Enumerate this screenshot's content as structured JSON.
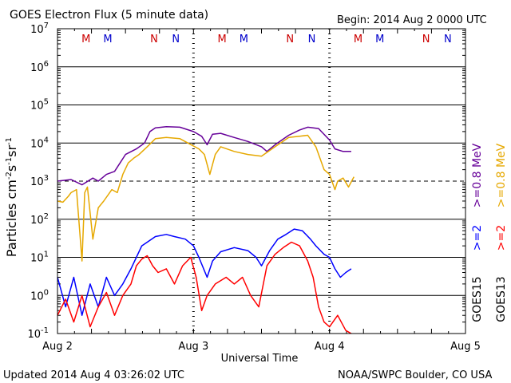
{
  "header": {
    "title": "GOES Electron Flux (5 minute data)",
    "begin": "Begin: 2014 Aug 2 0000 UTC"
  },
  "footer": {
    "updated": "Updated 2014 Aug  4 03:26:02 UTC",
    "credit": "NOAA/SWPC Boulder, CO USA"
  },
  "colors": {
    "goes15_e2": "#0000ff",
    "goes13_e2": "#ff0000",
    "goes15_e08": "#660099",
    "goes13_e08": "#e6a800",
    "marker_m": "#cc0000",
    "marker_n_red": "#cc0000",
    "marker_n_blue": "#0000cc"
  },
  "chart_data": {
    "type": "line",
    "title": "GOES Electron Flux (5 minute data)",
    "xlabel": "Universal Time",
    "ylabel": "Particles cm^-2 s^-1 sr^-1",
    "yscale": "log",
    "ylim": [
      0.1,
      10000000
    ],
    "xlim": [
      0,
      3
    ],
    "x_unit": "days since 2014 Aug 2 0000 UTC",
    "x_tick_labels": [
      "Aug 2",
      "Aug 3",
      "Aug 4",
      "Aug 5"
    ],
    "y_tick_exponents": [
      "-1",
      "0",
      "1",
      "2",
      "3",
      "4",
      "5",
      "6",
      "7"
    ],
    "y_tick_base": "10",
    "threshold_line": 1000,
    "grid": true,
    "legend_entries": [
      {
        "label": ">=0.8 MeV",
        "satellite": "GOES13",
        "series": "GOES13 >=0.8 MeV"
      },
      {
        "label": ">=0.8 MeV",
        "satellite": "GOES15",
        "series": "GOES15 >=0.8 MeV"
      },
      {
        "label": ">=2",
        "satellite": "GOES15",
        "series": "GOES15 >=2 MeV"
      },
      {
        "label": ">=2",
        "satellite": "GOES13",
        "series": "GOES13 >=2 MeV"
      }
    ],
    "satellite_labels": [
      "GOES15",
      "GOES13"
    ],
    "markers": [
      {
        "label": "M",
        "x": 0.21,
        "color": "#cc0000"
      },
      {
        "label": "M",
        "x": 0.37,
        "color": "#0000cc"
      },
      {
        "label": "N",
        "x": 0.71,
        "color": "#cc0000"
      },
      {
        "label": "N",
        "x": 0.87,
        "color": "#0000cc"
      },
      {
        "label": "M",
        "x": 1.21,
        "color": "#cc0000"
      },
      {
        "label": "M",
        "x": 1.37,
        "color": "#0000cc"
      },
      {
        "label": "N",
        "x": 1.71,
        "color": "#cc0000"
      },
      {
        "label": "N",
        "x": 1.87,
        "color": "#0000cc"
      },
      {
        "label": "M",
        "x": 2.21,
        "color": "#cc0000"
      },
      {
        "label": "M",
        "x": 2.37,
        "color": "#0000cc"
      },
      {
        "label": "N",
        "x": 2.71,
        "color": "#cc0000"
      },
      {
        "label": "N",
        "x": 2.87,
        "color": "#0000cc"
      }
    ],
    "series": [
      {
        "name": "GOES15 >=0.8 MeV",
        "color": "#660099",
        "x": [
          0.0,
          0.1,
          0.18,
          0.26,
          0.3,
          0.36,
          0.42,
          0.5,
          0.58,
          0.64,
          0.68,
          0.72,
          0.8,
          0.9,
          1.0,
          1.06,
          1.1,
          1.14,
          1.2,
          1.3,
          1.4,
          1.5,
          1.54,
          1.6,
          1.7,
          1.78,
          1.84,
          1.92,
          2.0,
          2.04,
          2.1,
          2.16
        ],
        "y": [
          1000,
          1100,
          800,
          1200,
          1000,
          1500,
          1800,
          5000,
          7000,
          10000,
          20000,
          25000,
          27000,
          26000,
          20000,
          15000,
          9000,
          17000,
          18000,
          14000,
          11000,
          8000,
          6000,
          9000,
          16000,
          22000,
          26000,
          24000,
          12000,
          7000,
          6000,
          6000
        ]
      },
      {
        "name": "GOES13 >=0.8 MeV",
        "color": "#e6a800",
        "x": [
          0.0,
          0.04,
          0.08,
          0.1,
          0.14,
          0.18,
          0.2,
          0.22,
          0.26,
          0.3,
          0.34,
          0.4,
          0.44,
          0.48,
          0.52,
          0.56,
          0.6,
          0.66,
          0.72,
          0.8,
          0.9,
          0.96,
          1.04,
          1.08,
          1.12,
          1.16,
          1.2,
          1.3,
          1.4,
          1.5,
          1.6,
          1.7,
          1.78,
          1.84,
          1.9,
          1.96,
          2.0,
          2.04,
          2.06,
          2.1,
          2.14,
          2.18
        ],
        "y": [
          300,
          280,
          400,
          500,
          600,
          8,
          500,
          700,
          30,
          200,
          300,
          600,
          500,
          1500,
          3000,
          4000,
          5000,
          8000,
          13000,
          14000,
          13000,
          10000,
          7000,
          5000,
          1500,
          5000,
          8000,
          6000,
          5000,
          4500,
          8000,
          14000,
          15000,
          16000,
          8000,
          2000,
          1500,
          600,
          1000,
          1200,
          700,
          1300
        ]
      },
      {
        "name": "GOES15 >=2 MeV",
        "color": "#0000ff",
        "x": [
          0.0,
          0.06,
          0.12,
          0.18,
          0.24,
          0.3,
          0.36,
          0.42,
          0.48,
          0.54,
          0.58,
          0.62,
          0.66,
          0.72,
          0.8,
          0.86,
          0.94,
          1.0,
          1.04,
          1.1,
          1.14,
          1.2,
          1.3,
          1.4,
          1.46,
          1.5,
          1.56,
          1.62,
          1.68,
          1.74,
          1.8,
          1.86,
          1.9,
          1.96,
          2.0,
          2.04,
          2.08,
          2.12,
          2.16
        ],
        "y": [
          3,
          0.5,
          3,
          0.3,
          2,
          0.5,
          3,
          1,
          2,
          5,
          10,
          20,
          25,
          35,
          40,
          35,
          30,
          20,
          10,
          3,
          8,
          14,
          18,
          15,
          10,
          6,
          15,
          30,
          40,
          55,
          50,
          30,
          20,
          12,
          10,
          5,
          3,
          4,
          5
        ]
      },
      {
        "name": "GOES13 >=2 MeV",
        "color": "#ff0000",
        "x": [
          0.0,
          0.06,
          0.12,
          0.18,
          0.24,
          0.3,
          0.36,
          0.42,
          0.48,
          0.54,
          0.58,
          0.62,
          0.66,
          0.7,
          0.74,
          0.8,
          0.86,
          0.92,
          0.98,
          1.02,
          1.06,
          1.1,
          1.16,
          1.24,
          1.3,
          1.36,
          1.42,
          1.48,
          1.54,
          1.6,
          1.66,
          1.72,
          1.78,
          1.84,
          1.88,
          1.92,
          1.96,
          2.0,
          2.06,
          2.12,
          2.16
        ],
        "y": [
          0.3,
          0.8,
          0.2,
          1,
          0.15,
          0.5,
          1.2,
          0.3,
          1,
          2,
          6,
          9,
          11,
          6,
          4,
          5,
          2,
          6,
          10,
          3,
          0.4,
          1,
          2,
          3,
          2,
          3,
          1,
          0.5,
          6,
          12,
          18,
          25,
          20,
          8,
          3,
          0.5,
          0.2,
          0.15,
          0.3,
          0.12,
          0.1
        ]
      }
    ]
  }
}
